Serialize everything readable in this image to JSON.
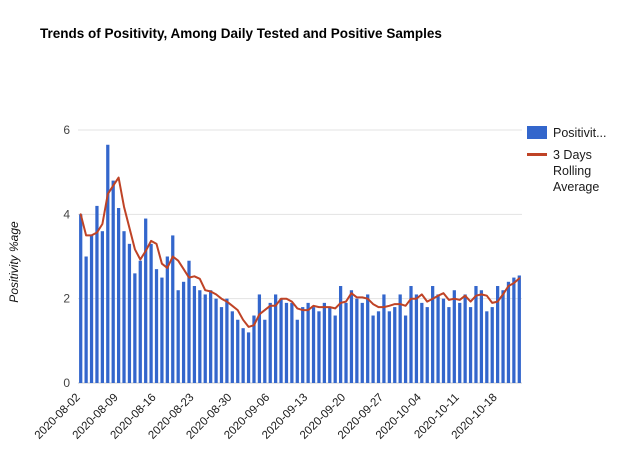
{
  "title": "Trends of Positivity, Among Daily Tested and Positive Samples",
  "legend": {
    "bar_label": "Positivit...",
    "line_label": "3 Days Rolling Average"
  },
  "chart_data": {
    "type": "bar",
    "title": "Trends of Positivity, Among Daily Tested and Positive Samples",
    "xlabel": "",
    "ylabel": "Positivity %age",
    "ylim": [
      0,
      6
    ],
    "yticks": [
      0,
      2,
      4,
      6
    ],
    "grid": "horizontal",
    "legend_position": "right",
    "xticks": [
      "2020-08-02",
      "2020-08-09",
      "2020-08-16",
      "2020-08-23",
      "2020-08-30",
      "2020-09-06",
      "2020-09-13",
      "2020-09-20",
      "2020-09-27",
      "2020-10-04",
      "2020-10-11",
      "2020-10-18"
    ],
    "x": [
      "2020-08-02",
      "2020-08-03",
      "2020-08-04",
      "2020-08-05",
      "2020-08-06",
      "2020-08-07",
      "2020-08-08",
      "2020-08-09",
      "2020-08-10",
      "2020-08-11",
      "2020-08-12",
      "2020-08-13",
      "2020-08-14",
      "2020-08-15",
      "2020-08-16",
      "2020-08-17",
      "2020-08-18",
      "2020-08-19",
      "2020-08-20",
      "2020-08-21",
      "2020-08-22",
      "2020-08-23",
      "2020-08-24",
      "2020-08-25",
      "2020-08-26",
      "2020-08-27",
      "2020-08-28",
      "2020-08-29",
      "2020-08-30",
      "2020-08-31",
      "2020-09-01",
      "2020-09-02",
      "2020-09-03",
      "2020-09-04",
      "2020-09-05",
      "2020-09-06",
      "2020-09-07",
      "2020-09-08",
      "2020-09-09",
      "2020-09-10",
      "2020-09-11",
      "2020-09-12",
      "2020-09-13",
      "2020-09-14",
      "2020-09-15",
      "2020-09-16",
      "2020-09-17",
      "2020-09-18",
      "2020-09-19",
      "2020-09-20",
      "2020-09-21",
      "2020-09-22",
      "2020-09-23",
      "2020-09-24",
      "2020-09-25",
      "2020-09-26",
      "2020-09-27",
      "2020-09-28",
      "2020-09-29",
      "2020-09-30",
      "2020-10-01",
      "2020-10-02",
      "2020-10-03",
      "2020-10-04",
      "2020-10-05",
      "2020-10-06",
      "2020-10-07",
      "2020-10-08",
      "2020-10-09",
      "2020-10-10",
      "2020-10-11",
      "2020-10-12",
      "2020-10-13",
      "2020-10-14",
      "2020-10-15",
      "2020-10-16",
      "2020-10-17",
      "2020-10-18",
      "2020-10-19",
      "2020-10-20",
      "2020-10-21",
      "2020-10-22"
    ],
    "series": [
      {
        "name": "Positivit...",
        "render": "bar",
        "color": "#3366cc",
        "values": [
          4.0,
          3.0,
          3.5,
          4.2,
          3.6,
          5.65,
          4.8,
          4.15,
          3.6,
          3.3,
          2.6,
          2.9,
          3.9,
          3.3,
          2.7,
          2.5,
          3.0,
          3.5,
          2.2,
          2.4,
          2.9,
          2.3,
          2.2,
          2.1,
          2.2,
          2.0,
          1.8,
          2.0,
          1.7,
          1.5,
          1.3,
          1.2,
          1.6,
          2.1,
          1.5,
          1.9,
          2.1,
          2.0,
          1.9,
          1.9,
          1.5,
          1.8,
          1.9,
          1.8,
          1.7,
          1.9,
          1.8,
          1.6,
          2.3,
          1.9,
          2.2,
          2.0,
          1.9,
          2.1,
          1.6,
          1.7,
          2.1,
          1.7,
          1.8,
          2.1,
          1.6,
          2.3,
          2.1,
          1.9,
          1.8,
          2.3,
          2.1,
          2.0,
          1.8,
          2.2,
          1.9,
          2.1,
          1.8,
          2.3,
          2.2,
          1.7,
          1.8,
          2.3,
          2.2,
          2.4,
          2.5,
          2.55
        ]
      },
      {
        "name": "3 Days Rolling Average",
        "render": "line",
        "color": "#bf4326",
        "values": [
          4.0,
          3.5,
          3.5,
          3.57,
          3.77,
          4.48,
          4.68,
          4.87,
          4.18,
          3.68,
          3.17,
          2.93,
          3.13,
          3.37,
          3.3,
          2.83,
          2.73,
          3.0,
          2.9,
          2.7,
          2.5,
          2.53,
          2.47,
          2.2,
          2.17,
          2.1,
          2.0,
          1.93,
          1.83,
          1.73,
          1.5,
          1.33,
          1.37,
          1.63,
          1.73,
          1.83,
          1.83,
          2.0,
          2.0,
          1.93,
          1.77,
          1.73,
          1.73,
          1.83,
          1.8,
          1.8,
          1.8,
          1.77,
          1.9,
          1.93,
          2.13,
          2.03,
          2.03,
          2.0,
          1.87,
          1.8,
          1.8,
          1.83,
          1.87,
          1.87,
          1.83,
          2.0,
          2.0,
          2.1,
          1.93,
          2.0,
          2.07,
          2.13,
          1.97,
          2.0,
          1.97,
          2.07,
          1.93,
          2.07,
          2.1,
          2.07,
          1.9,
          1.93,
          2.1,
          2.3,
          2.37,
          2.48
        ]
      }
    ]
  }
}
